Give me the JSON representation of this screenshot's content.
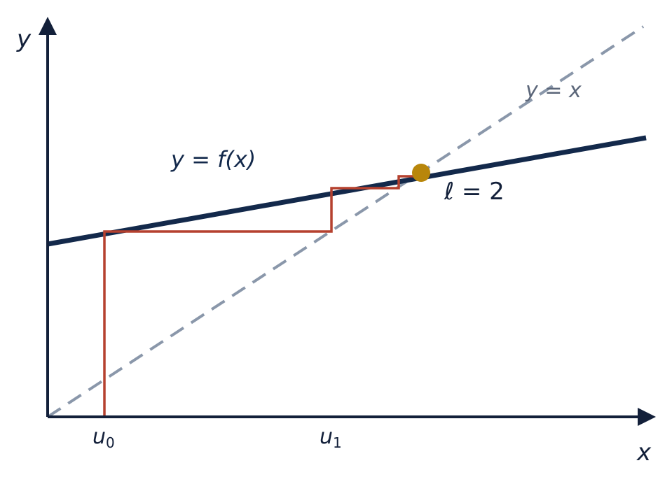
{
  "axes": {
    "x_label": "x",
    "y_label": "y"
  },
  "curves": {
    "f_label": "y = f(x)",
    "identity_label": "y = x"
  },
  "iterates": [
    {
      "symbol": "u",
      "index": "0"
    },
    {
      "symbol": "u",
      "index": "1"
    }
  ],
  "fixed_point": {
    "label": "ℓ = 2"
  }
}
